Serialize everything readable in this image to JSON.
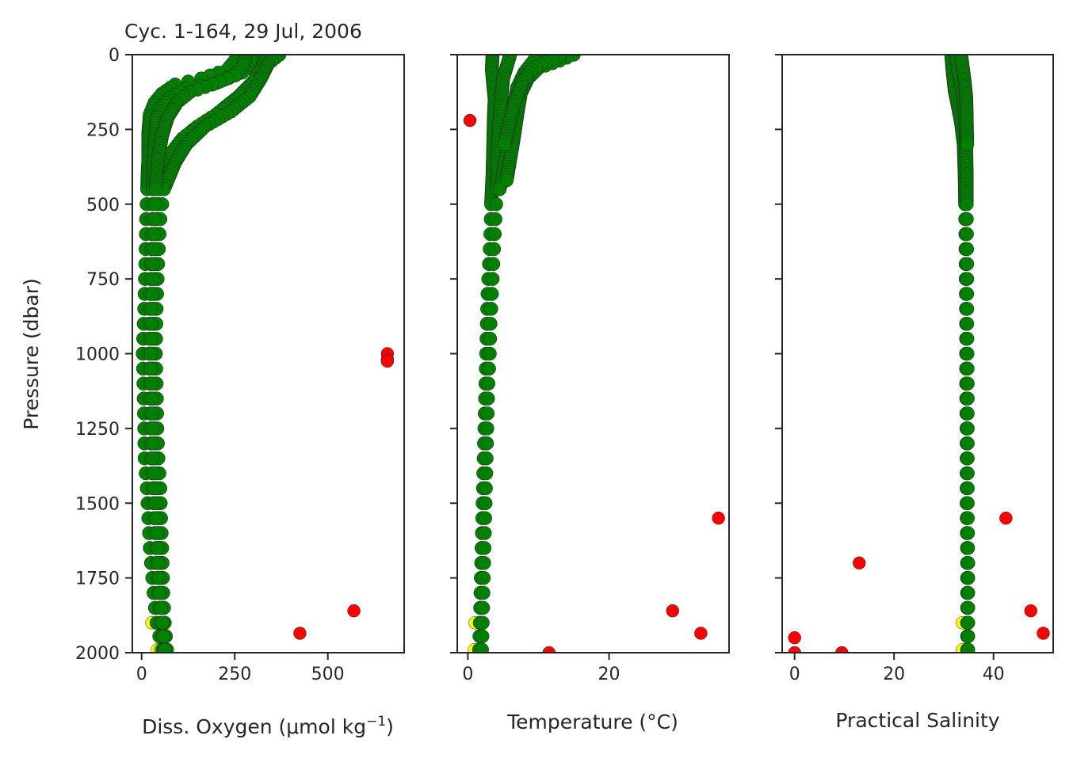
{
  "figure": {
    "title": "Cyc. 1-164, 29 Jul, 2006",
    "ylabel": "Pressure (dbar)",
    "colors": {
      "good": "#008000",
      "probably_good": "#ffff00",
      "bad": "#ff0000",
      "edge": "#222222"
    }
  },
  "chart_data": [
    {
      "type": "scatter",
      "name": "oxygen",
      "title": "Cyc. 1-164, 29 Jul, 2006",
      "xlabel": "Diss. Oxygen (μmol kg",
      "xlabel_sup": "−1",
      "xlabel_end": ")",
      "ylabel": "Pressure (dbar)",
      "xlim": [
        -25,
        705
      ],
      "ylim": [
        2000,
        0
      ],
      "xticks": [
        0,
        250,
        500
      ],
      "yticks": [
        0,
        250,
        500,
        750,
        1000,
        1250,
        1500,
        1750,
        2000
      ],
      "good_profiles": [
        [
          [
            260,
            0
          ],
          [
            250,
            20
          ],
          [
            230,
            50
          ],
          [
            160,
            80
          ],
          [
            90,
            100
          ],
          [
            55,
            130
          ],
          [
            35,
            160
          ],
          [
            22,
            200
          ],
          [
            18,
            260
          ],
          [
            18,
            350
          ],
          [
            16,
            400
          ],
          [
            15,
            450
          ],
          [
            12,
            550
          ],
          [
            10,
            700
          ],
          [
            7,
            850
          ],
          [
            3,
            1000
          ],
          [
            5,
            1100
          ],
          [
            7,
            1250
          ],
          [
            8,
            1350
          ],
          [
            14,
            1450
          ],
          [
            18,
            1550
          ],
          [
            22,
            1650
          ],
          [
            32,
            1800
          ],
          [
            40,
            1900
          ],
          [
            55,
            1990
          ]
        ],
        [
          [
            300,
            0
          ],
          [
            290,
            30
          ],
          [
            270,
            60
          ],
          [
            200,
            95
          ],
          [
            120,
            115
          ],
          [
            75,
            145
          ],
          [
            52,
            180
          ],
          [
            40,
            220
          ],
          [
            35,
            300
          ],
          [
            32,
            400
          ],
          [
            30,
            450
          ],
          [
            28,
            550
          ],
          [
            25,
            700
          ],
          [
            22,
            850
          ],
          [
            20,
            1000
          ],
          [
            22,
            1100
          ],
          [
            24,
            1250
          ],
          [
            26,
            1350
          ],
          [
            30,
            1450
          ],
          [
            34,
            1550
          ],
          [
            38,
            1650
          ],
          [
            45,
            1800
          ],
          [
            52,
            1900
          ],
          [
            60,
            1990
          ]
        ],
        [
          [
            340,
            0
          ],
          [
            325,
            40
          ],
          [
            300,
            90
          ],
          [
            260,
            140
          ],
          [
            200,
            200
          ],
          [
            150,
            240
          ],
          [
            110,
            280
          ],
          [
            85,
            320
          ],
          [
            65,
            360
          ],
          [
            55,
            400
          ],
          [
            48,
            450
          ],
          [
            40,
            550
          ],
          [
            35,
            700
          ],
          [
            32,
            850
          ],
          [
            30,
            1000
          ],
          [
            31,
            1100
          ],
          [
            33,
            1250
          ],
          [
            36,
            1350
          ],
          [
            40,
            1450
          ],
          [
            45,
            1550
          ],
          [
            48,
            1650
          ],
          [
            52,
            1800
          ],
          [
            60,
            1900
          ],
          [
            65,
            1990
          ]
        ],
        [
          [
            370,
            0
          ],
          [
            340,
            30
          ],
          [
            320,
            80
          ],
          [
            290,
            140
          ],
          [
            240,
            190
          ],
          [
            170,
            240
          ],
          [
            120,
            300
          ],
          [
            90,
            360
          ],
          [
            70,
            420
          ],
          [
            60,
            450
          ],
          [
            50,
            550
          ],
          [
            44,
            700
          ],
          [
            40,
            850
          ],
          [
            38,
            1000
          ],
          [
            40,
            1100
          ],
          [
            42,
            1250
          ],
          [
            45,
            1350
          ],
          [
            50,
            1450
          ],
          [
            52,
            1550
          ],
          [
            55,
            1650
          ],
          [
            58,
            1800
          ],
          [
            62,
            1900
          ],
          [
            68,
            1990
          ]
        ],
        [
          [
            280,
            5
          ],
          [
            270,
            40
          ],
          [
            250,
            70
          ],
          [
            190,
            100
          ],
          [
            130,
            125
          ],
          [
            95,
            160
          ],
          [
            70,
            210
          ],
          [
            55,
            270
          ],
          [
            45,
            340
          ],
          [
            40,
            400
          ],
          [
            38,
            450
          ],
          [
            35,
            550
          ],
          [
            30,
            700
          ],
          [
            27,
            850
          ],
          [
            25,
            1000
          ],
          [
            26,
            1100
          ],
          [
            29,
            1250
          ],
          [
            31,
            1350
          ],
          [
            35,
            1450
          ],
          [
            40,
            1550
          ],
          [
            43,
            1650
          ],
          [
            48,
            1800
          ],
          [
            56,
            1900
          ],
          [
            62,
            1990
          ]
        ]
      ],
      "bad_points": [
        [
          660,
          1000
        ],
        [
          660,
          1020
        ],
        [
          660,
          1025
        ],
        [
          570,
          1860
        ],
        [
          425,
          1935
        ]
      ]
    },
    {
      "type": "scatter",
      "name": "temperature",
      "xlabel": "Temperature (°C)",
      "xlim": [
        -1.5,
        37
      ],
      "ylim": [
        2000,
        0
      ],
      "xticks": [
        0,
        20
      ],
      "yticks": [
        0,
        250,
        500,
        750,
        1000,
        1250,
        1500,
        1750,
        2000
      ],
      "good_profiles": [
        [
          [
            3.5,
            0
          ],
          [
            3.4,
            50
          ],
          [
            3.6,
            100
          ],
          [
            3.8,
            150
          ],
          [
            3.7,
            200
          ],
          [
            3.6,
            300
          ],
          [
            3.5,
            400
          ],
          [
            3.3,
            500
          ],
          [
            3.2,
            600
          ],
          [
            3.0,
            700
          ],
          [
            2.8,
            800
          ],
          [
            2.7,
            900
          ],
          [
            2.6,
            1000
          ],
          [
            2.5,
            1100
          ],
          [
            2.4,
            1200
          ],
          [
            2.3,
            1300
          ],
          [
            2.2,
            1400
          ],
          [
            2.1,
            1500
          ],
          [
            2.0,
            1600
          ],
          [
            1.9,
            1700
          ],
          [
            1.8,
            1800
          ],
          [
            1.7,
            1900
          ],
          [
            1.6,
            1990
          ]
        ],
        [
          [
            6.0,
            0
          ],
          [
            5.5,
            40
          ],
          [
            5.0,
            80
          ],
          [
            4.8,
            130
          ],
          [
            4.6,
            180
          ],
          [
            4.4,
            250
          ],
          [
            4.2,
            350
          ],
          [
            4.1,
            450
          ],
          [
            4.0,
            500
          ],
          [
            3.8,
            600
          ],
          [
            3.6,
            700
          ],
          [
            3.4,
            800
          ],
          [
            3.2,
            900
          ],
          [
            3.1,
            1000
          ],
          [
            2.9,
            1100
          ],
          [
            2.8,
            1200
          ],
          [
            2.7,
            1300
          ],
          [
            2.6,
            1400
          ],
          [
            2.5,
            1500
          ],
          [
            2.4,
            1600
          ],
          [
            2.3,
            1700
          ],
          [
            2.2,
            1800
          ],
          [
            2.1,
            1900
          ],
          [
            2.0,
            1990
          ]
        ],
        [
          [
            10.0,
            0
          ],
          [
            9.0,
            30
          ],
          [
            8.0,
            60
          ],
          [
            7.0,
            110
          ],
          [
            6.5,
            170
          ],
          [
            6.0,
            250
          ],
          [
            5.5,
            330
          ],
          [
            5.0,
            400
          ],
          [
            4.5,
            450
          ]
        ],
        [
          [
            15.0,
            0
          ],
          [
            13.0,
            20
          ],
          [
            10.0,
            45
          ],
          [
            8.5,
            80
          ],
          [
            7.5,
            130
          ],
          [
            7.0,
            200
          ],
          [
            6.5,
            280
          ],
          [
            6.0,
            350
          ],
          [
            5.5,
            420
          ]
        ],
        [
          [
            13.0,
            5
          ],
          [
            11.0,
            25
          ],
          [
            9.0,
            50
          ],
          [
            7.8,
            90
          ],
          [
            6.8,
            150
          ],
          [
            6.0,
            220
          ],
          [
            5.2,
            300
          ]
        ]
      ],
      "bad_points": [
        [
          0.3,
          220
        ],
        [
          35.5,
          1550
        ],
        [
          29.0,
          1860
        ],
        [
          33.0,
          1935
        ],
        [
          11.5,
          2000
        ]
      ]
    },
    {
      "type": "scatter",
      "name": "salinity",
      "xlabel": "Practical Salinity",
      "xlim": [
        -2.5,
        52
      ],
      "ylim": [
        2000,
        0
      ],
      "xticks": [
        0,
        20,
        40
      ],
      "yticks": [
        0,
        250,
        500,
        750,
        1000,
        1250,
        1500,
        1750,
        2000
      ],
      "good_profiles": [
        [
          [
            31.5,
            0
          ],
          [
            31.8,
            60
          ],
          [
            32.2,
            120
          ],
          [
            32.8,
            170
          ],
          [
            33.5,
            230
          ],
          [
            34.0,
            300
          ],
          [
            34.2,
            400
          ],
          [
            34.3,
            500
          ],
          [
            34.4,
            700
          ],
          [
            34.5,
            900
          ],
          [
            34.5,
            1100
          ],
          [
            34.6,
            1300
          ],
          [
            34.6,
            1500
          ],
          [
            34.7,
            1700
          ],
          [
            34.7,
            1900
          ],
          [
            34.7,
            1990
          ]
        ],
        [
          [
            32.5,
            0
          ],
          [
            32.8,
            50
          ],
          [
            33.5,
            100
          ],
          [
            34.0,
            150
          ],
          [
            34.3,
            220
          ],
          [
            34.5,
            300
          ],
          [
            34.6,
            400
          ],
          [
            34.6,
            500
          ],
          [
            34.7,
            700
          ],
          [
            34.7,
            900
          ],
          [
            34.8,
            1100
          ],
          [
            34.8,
            1300
          ],
          [
            34.8,
            1500
          ],
          [
            34.9,
            1700
          ],
          [
            34.9,
            1900
          ],
          [
            34.9,
            1990
          ]
        ],
        [
          [
            33.5,
            0
          ],
          [
            33.8,
            40
          ],
          [
            34.2,
            90
          ],
          [
            34.5,
            140
          ],
          [
            34.6,
            200
          ],
          [
            34.7,
            300
          ]
        ]
      ],
      "bad_points": [
        [
          0.0,
          1950
        ],
        [
          0.0,
          2000
        ],
        [
          9.5,
          2000
        ],
        [
          13.0,
          1700
        ],
        [
          42.5,
          1550
        ],
        [
          47.5,
          1860
        ],
        [
          50.0,
          1935
        ]
      ]
    }
  ]
}
